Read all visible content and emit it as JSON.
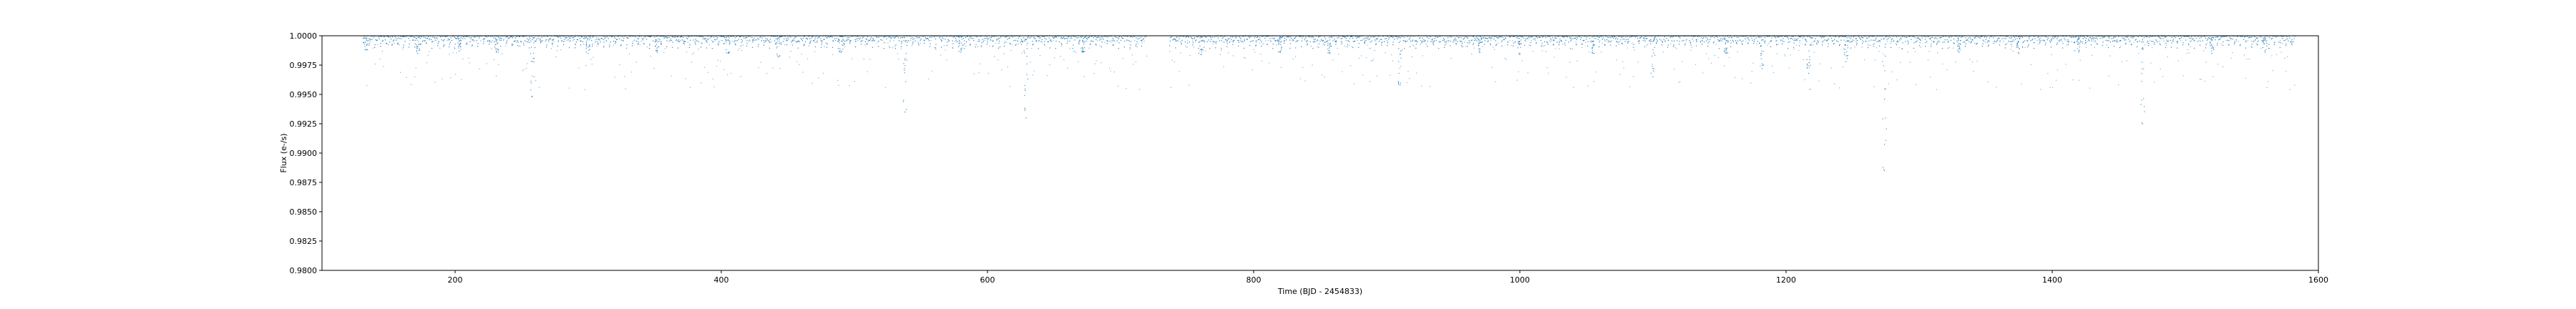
{
  "chart_data": {
    "type": "scatter",
    "title": "",
    "xlabel": "Time (BJD - 2454833)",
    "ylabel": "Flux (e-/s)",
    "xlim": [
      100,
      1600
    ],
    "ylim": [
      0.98,
      1.0
    ],
    "xticks": [
      200,
      400,
      600,
      800,
      1000,
      1200,
      1400,
      1600
    ],
    "yticks": [
      0.98,
      0.9825,
      0.985,
      0.9875,
      0.99,
      0.9925,
      0.995,
      0.9975,
      1.0
    ],
    "ytick_labels": [
      "0.9800",
      "0.9825",
      "0.9850",
      "0.9875",
      "0.9900",
      "0.9925",
      "0.9950",
      "0.9975",
      "1.0000"
    ],
    "grid": false,
    "marker_color": "#1f77b4",
    "series": [
      {
        "segments": [
          [
            131,
            720
          ],
          [
            737,
            1583
          ]
        ],
        "baseline": 1.0,
        "dips": [
          {
            "x": 133,
            "y": 0.9988
          },
          {
            "x": 172,
            "y": 0.9985
          },
          {
            "x": 203,
            "y": 0.9987
          },
          {
            "x": 231,
            "y": 0.9986
          },
          {
            "x": 258,
            "y": 0.9948
          },
          {
            "x": 300,
            "y": 0.9985
          },
          {
            "x": 352,
            "y": 0.9986
          },
          {
            "x": 405,
            "y": 0.9985
          },
          {
            "x": 443,
            "y": 0.9982
          },
          {
            "x": 490,
            "y": 0.9986
          },
          {
            "x": 538,
            "y": 0.9935
          },
          {
            "x": 580,
            "y": 0.9986
          },
          {
            "x": 629,
            "y": 0.993
          },
          {
            "x": 672,
            "y": 0.9986
          },
          {
            "x": 760,
            "y": 0.9984
          },
          {
            "x": 820,
            "y": 0.9986
          },
          {
            "x": 857,
            "y": 0.9985
          },
          {
            "x": 910,
            "y": 0.9958
          },
          {
            "x": 970,
            "y": 0.9986
          },
          {
            "x": 1000,
            "y": 0.9984
          },
          {
            "x": 1055,
            "y": 0.9985
          },
          {
            "x": 1100,
            "y": 0.9965
          },
          {
            "x": 1155,
            "y": 0.9985
          },
          {
            "x": 1182,
            "y": 0.9972
          },
          {
            "x": 1217,
            "y": 0.9968
          },
          {
            "x": 1245,
            "y": 0.9978
          },
          {
            "x": 1274,
            "y": 0.9885
          },
          {
            "x": 1330,
            "y": 0.9986
          },
          {
            "x": 1375,
            "y": 0.9985
          },
          {
            "x": 1420,
            "y": 0.9986
          },
          {
            "x": 1468,
            "y": 0.9925
          },
          {
            "x": 1520,
            "y": 0.9985
          },
          {
            "x": 1560,
            "y": 0.9986
          }
        ]
      }
    ]
  }
}
